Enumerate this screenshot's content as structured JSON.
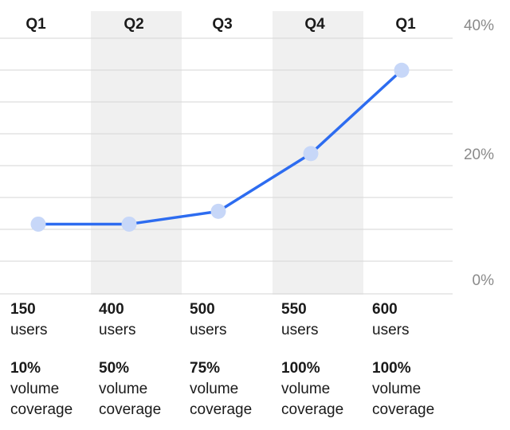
{
  "chart_data": {
    "type": "line",
    "categories": [
      "Q1",
      "Q2",
      "Q3",
      "Q4",
      "Q1"
    ],
    "values": [
      11,
      11,
      13,
      22,
      35
    ],
    "ylim": [
      0,
      40
    ],
    "y_tick_labels": [
      "40%",
      "20%",
      "0%"
    ],
    "y_tick_values": [
      40,
      20,
      0
    ],
    "title": "",
    "xlabel": "",
    "ylabel": "",
    "grid": true,
    "shaded_columns": [
      1,
      3
    ]
  },
  "stats": [
    {
      "users": "150",
      "users_label": "users",
      "coverage": "10%",
      "coverage_label_1": "volume",
      "coverage_label_2": "coverage"
    },
    {
      "users": "400",
      "users_label": "users",
      "coverage": "50%",
      "coverage_label_1": "volume",
      "coverage_label_2": "coverage"
    },
    {
      "users": "500",
      "users_label": "users",
      "coverage": "75%",
      "coverage_label_1": "volume",
      "coverage_label_2": "coverage"
    },
    {
      "users": "550",
      "users_label": "users",
      "coverage": "100%",
      "coverage_label_1": "volume",
      "coverage_label_2": "coverage"
    },
    {
      "users": "600",
      "users_label": "users",
      "coverage": "100%",
      "coverage_label_1": "volume",
      "coverage_label_2": "coverage"
    }
  ],
  "colors": {
    "line": "#2d6cf0",
    "point": "#c7d7f8",
    "shade": "#f0f0f0",
    "grid": "#d6d6d6",
    "axis_text": "#8a8a8a",
    "category_text": "#1a1a1a"
  }
}
